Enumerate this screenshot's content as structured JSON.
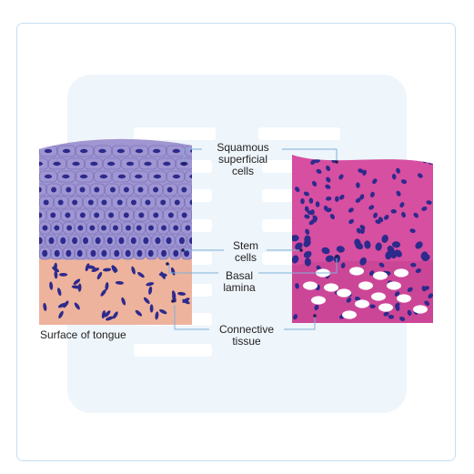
{
  "labels": {
    "squamous": [
      "Squamous",
      "superficial",
      "cells"
    ],
    "stem": [
      "Stem",
      "cells"
    ],
    "basal": [
      "Basal",
      "lamina"
    ],
    "connective": [
      "Connective",
      "tissue"
    ]
  },
  "caption": "Surface of tongue",
  "colors": {
    "frame": "#c5def3",
    "watermark": "#eef5fb",
    "epithelium_left": "#9f96d2",
    "cell_outline": "#7e76bd",
    "nucleus": "#2d2a8c",
    "connective_left": "#eeb39d",
    "tissue_right": "#d64fa1",
    "tissue_right_dark": "#c43f90",
    "leader": "#7fb1d8"
  },
  "icons": {
    "left_panel": "histology-illustration",
    "right_panel": "histology-micrograph",
    "watermark": "document-watermark-icon"
  }
}
